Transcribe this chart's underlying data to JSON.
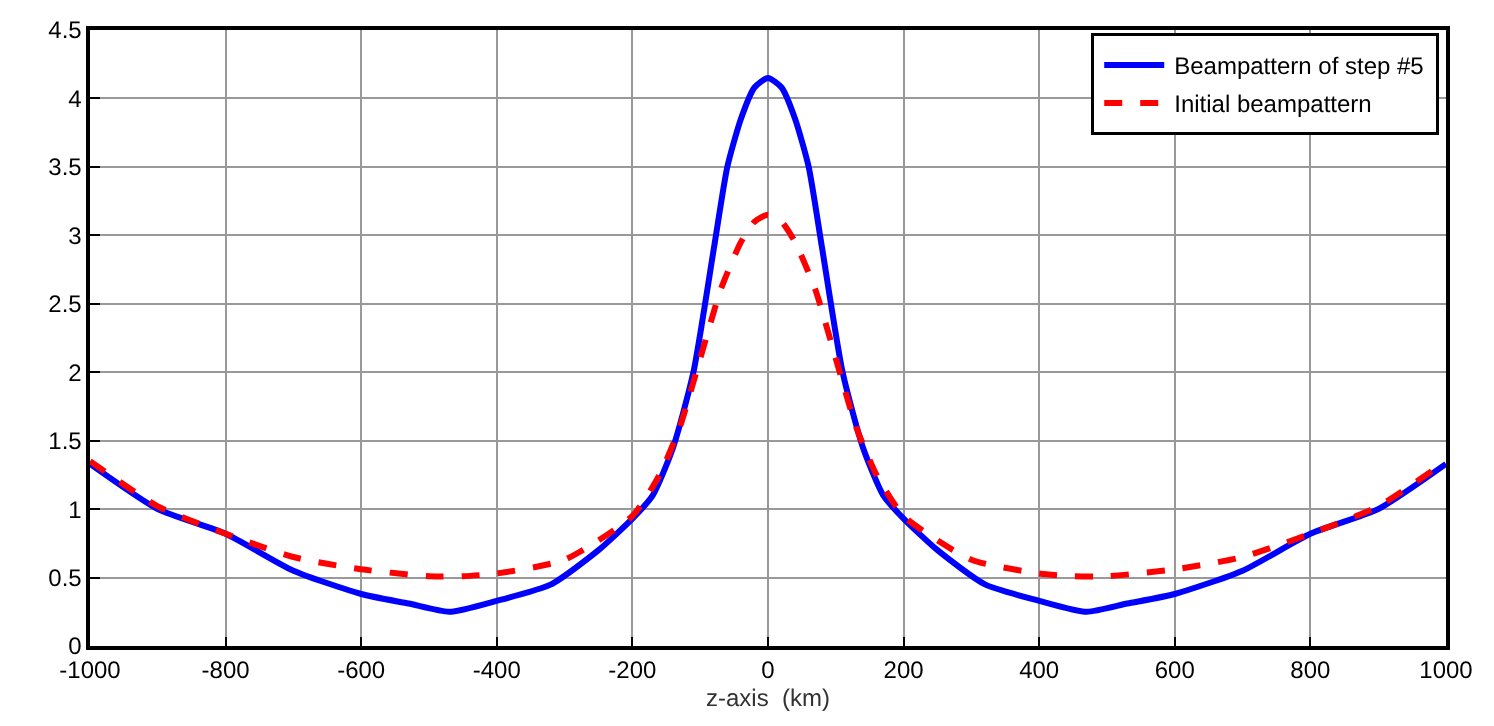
{
  "chart_data": {
    "type": "line",
    "xlabel": "z-axis  (km)",
    "xlim": [
      -1000,
      1000
    ],
    "xticks": [
      -1000,
      -800,
      -600,
      -400,
      -200,
      0,
      200,
      400,
      600,
      800,
      1000
    ],
    "ylim": [
      0,
      4.5
    ],
    "yticks": [
      0,
      0.5,
      1,
      1.5,
      2,
      2.5,
      3,
      3.5,
      4,
      4.5
    ],
    "grid": true,
    "legend": "top right",
    "series": [
      {
        "name": "Beampattern of step #5",
        "color": "#0000ff",
        "line_style": "solid",
        "x": [
          -1000,
          -900,
          -800,
          -700,
          -600,
          -530,
          -470,
          -400,
          -320,
          -250,
          -200,
          -170,
          -140,
          -110,
          -80,
          -60,
          -40,
          -20,
          0,
          20,
          40,
          60,
          80,
          110,
          140,
          170,
          200,
          250,
          320,
          400,
          470,
          530,
          600,
          700,
          800,
          900,
          1000
        ],
        "values": [
          1.33,
          1.0,
          0.82,
          0.55,
          0.38,
          0.31,
          0.25,
          0.33,
          0.45,
          0.7,
          0.93,
          1.1,
          1.45,
          2.0,
          2.9,
          3.5,
          3.85,
          4.08,
          4.15,
          4.08,
          3.85,
          3.5,
          2.9,
          2.0,
          1.45,
          1.1,
          0.93,
          0.7,
          0.45,
          0.33,
          0.25,
          0.31,
          0.38,
          0.55,
          0.82,
          1.0,
          1.33
        ]
      },
      {
        "name": "Initial beampattern",
        "color": "#ff0000",
        "line_style": "dashed",
        "x": [
          -1000,
          -900,
          -800,
          -700,
          -600,
          -500,
          -450,
          -400,
          -300,
          -200,
          -160,
          -130,
          -100,
          -70,
          -40,
          -20,
          0,
          20,
          40,
          70,
          100,
          130,
          160,
          200,
          300,
          400,
          450,
          500,
          600,
          700,
          800,
          900,
          1000
        ],
        "values": [
          1.35,
          1.02,
          0.82,
          0.65,
          0.56,
          0.51,
          0.51,
          0.53,
          0.63,
          0.95,
          1.25,
          1.6,
          2.1,
          2.6,
          2.95,
          3.1,
          3.15,
          3.1,
          2.95,
          2.6,
          2.1,
          1.6,
          1.25,
          0.95,
          0.63,
          0.53,
          0.51,
          0.51,
          0.56,
          0.65,
          0.82,
          1.02,
          1.35
        ]
      }
    ]
  }
}
